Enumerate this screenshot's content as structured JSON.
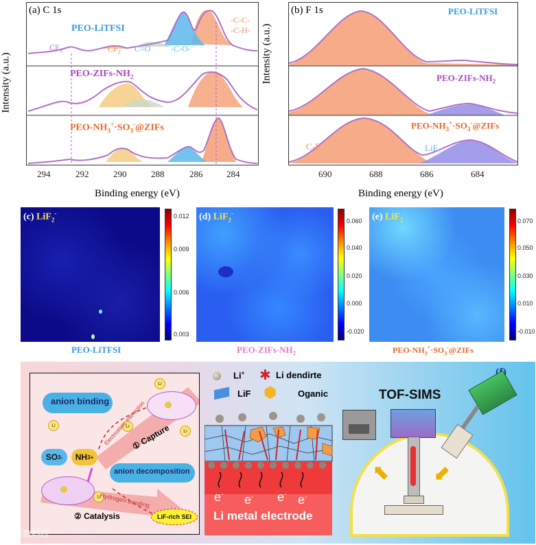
{
  "panel_a": {
    "label": "(a) C 1s",
    "peak_labels": {
      "cc": "-C-C-",
      "ch": "-C-H-",
      "co": "-C-O-",
      "ceo": "C=O",
      "cf2": "CF",
      "cf2_sub": "2",
      "cf3": "CF",
      "cf3_sub": "3"
    },
    "traces": [
      "PEO-LiTFSI",
      "PEO-ZIFs-NH",
      "PEO-NH",
      "+",
      "·SO",
      "-",
      "@ZIFs"
    ],
    "trace2_sub": "2",
    "trace3_sub": "3",
    "ylabel": "Intensity (a.u.)",
    "xlabel": "Binding energy (eV)",
    "xticks": [
      "294",
      "292",
      "290",
      "288",
      "286",
      "284"
    ]
  },
  "panel_b": {
    "label": "(b) F 1s",
    "traces": [
      "PEO-LiTFSI",
      "PEO-ZIFs-NH"
    ],
    "trace2_sub": "2",
    "peak_labels": {
      "cf": "C-F",
      "lif": "LiF"
    },
    "ylabel": "Intensity (a.u.)",
    "xlabel": "Binding energy (eV)",
    "xticks": [
      "690",
      "688",
      "686",
      "684"
    ]
  },
  "maps": [
    {
      "label": "(c)",
      "ion": "LiF",
      "ion_sub": "2",
      "ion_sup": "-",
      "caption": "PEO-LiTFSI",
      "ticks": [
        "0.012",
        "0.009",
        "0.006",
        "0.003"
      ]
    },
    {
      "label": "(d)",
      "ion": "LiF",
      "ion_sub": "2",
      "ion_sup": "-",
      "caption": "PEO-ZIFs-NH",
      "caption_sub": "2",
      "ticks": [
        "0.060",
        "0.040",
        "0.020",
        "0.000",
        "-0.020"
      ]
    },
    {
      "label": "(e)",
      "ion": "LiF",
      "ion_sub": "2",
      "ion_sup": "-",
      "caption": "PEO-NH",
      "ticks": [
        "0.070",
        "0.050",
        "0.030",
        "0.010",
        "-0.010"
      ]
    }
  ],
  "sims_caption": {
    "a": "PEO-NH",
    "sub3": "3",
    "sup": "+",
    "b": "·SO",
    "sup2": "-",
    "c": "@ZIFs"
  },
  "schematic": {
    "label": "(f)",
    "anion_binding": "anion binding",
    "anion_decomposition": "anion decomposition",
    "so3": "SO",
    "so3_sub": "3",
    "so3_sup": "-",
    "nh3": "NH",
    "nh3_sub": "3",
    "nh3_sup": "+",
    "capture": "① Capture",
    "electrostatic": "Electrostatic interaction",
    "hydrogen": "Hydrogen bonding",
    "catalysis": "② Catalysis",
    "lif_sei": "LiF-rich SEI",
    "legend_li": "Li",
    "legend_li_sup": "+",
    "legend_dendrite": "Li dendirte",
    "legend_lif": "LiF",
    "legend_organic": "Oganic",
    "electrode": "Li metal electrode",
    "electron": "e",
    "electron_sup": "-",
    "tof": "TOF-SIMS",
    "watermark": "六数科技"
  },
  "chart_data": [
    {
      "type": "line",
      "title": "(a) C 1s",
      "xlabel": "Binding energy (eV)",
      "ylabel": "Intensity (a.u.)",
      "xlim": [
        295.3,
        282.8
      ],
      "series": [
        {
          "name": "PEO-LiTFSI",
          "x": [
            295,
            292.8,
            290.5,
            289.5,
            288.6,
            287.5,
            286.5,
            285.7,
            285.2,
            284.8,
            284.2,
            283.5,
            283
          ],
          "values": [
            0.02,
            0.08,
            0.04,
            0.12,
            0.1,
            0.22,
            0.85,
            0.55,
            0.75,
            1.0,
            0.55,
            0.08,
            0.02
          ]
        },
        {
          "name": "PEO-ZIFs-NH2",
          "x": [
            295,
            292.8,
            291,
            289.7,
            288.8,
            287.5,
            286.5,
            285.5,
            284.9,
            284.2,
            283.5,
            283
          ],
          "values": [
            0.04,
            0.12,
            0.15,
            0.72,
            0.45,
            0.22,
            0.35,
            0.7,
            0.9,
            0.55,
            0.1,
            0.04
          ]
        },
        {
          "name": "PEO-NH3+·SO3-@ZIFs",
          "x": [
            295,
            292.8,
            291,
            289.7,
            288.7,
            287.5,
            286.6,
            285.8,
            285.2,
            284.8,
            284.2,
            283.5,
            283
          ],
          "values": [
            0.03,
            0.08,
            0.1,
            0.42,
            0.15,
            0.12,
            0.48,
            0.35,
            0.8,
            1.0,
            0.6,
            0.08,
            0.02
          ]
        }
      ],
      "markers": [
        292.7,
        284.8
      ]
    },
    {
      "type": "line",
      "title": "(b) F 1s",
      "xlabel": "Binding energy (eV)",
      "ylabel": "Intensity (a.u.)",
      "xlim": [
        691.5,
        682.8
      ],
      "series": [
        {
          "name": "PEO-LiTFSI",
          "x": [
            691.5,
            690,
            689,
            688.5,
            688,
            687,
            686,
            685,
            684,
            683
          ],
          "values": [
            0.05,
            0.45,
            0.92,
            1.0,
            0.9,
            0.4,
            0.06,
            0.06,
            0.03,
            0.02
          ]
        },
        {
          "name": "PEO-ZIFs-NH2",
          "x": [
            691.5,
            690,
            689,
            688.5,
            688,
            687,
            686,
            685,
            684,
            683
          ],
          "values": [
            0.05,
            0.45,
            0.92,
            1.0,
            0.9,
            0.4,
            0.2,
            0.35,
            0.2,
            0.04
          ]
        },
        {
          "name": "PEO-NH3+·SO3-@ZIFs",
          "x": [
            691.5,
            690,
            689,
            688.5,
            688,
            687,
            686,
            685,
            684,
            683
          ],
          "values": [
            0.05,
            0.45,
            0.9,
            1.0,
            0.9,
            0.45,
            0.45,
            0.58,
            0.4,
            0.04
          ]
        }
      ]
    }
  ]
}
